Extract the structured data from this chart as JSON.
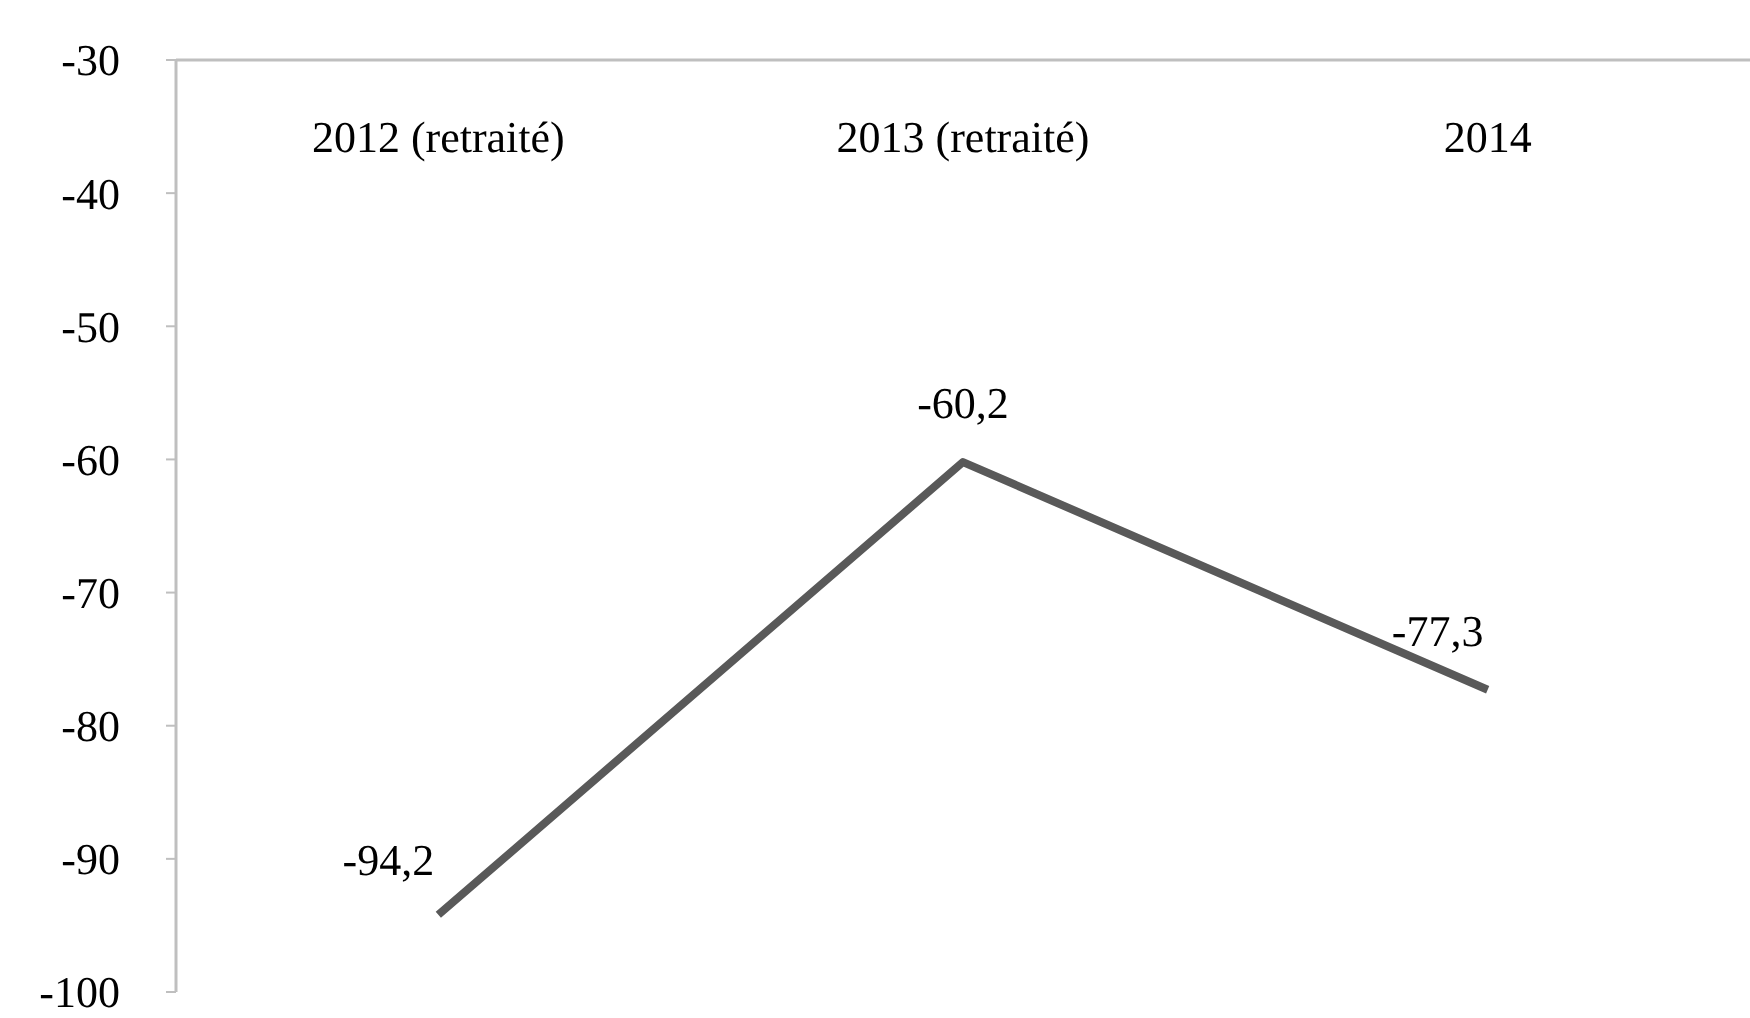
{
  "chart_data": {
    "type": "line",
    "categories": [
      "2012 (retraité)",
      "2013 (retraité)",
      "2014"
    ],
    "series": [
      {
        "color": "#595959",
        "values": [
          -94.2,
          -60.2,
          -77.3
        ],
        "value_labels": [
          "-94,2",
          "-60,2",
          "-77,3"
        ]
      }
    ],
    "ylim": [
      -100,
      -30
    ],
    "yticks": [
      -100,
      -90,
      -80,
      -70,
      -60,
      -50,
      -40,
      -30
    ],
    "grid": false,
    "marker": "none",
    "line_style": "solid"
  }
}
